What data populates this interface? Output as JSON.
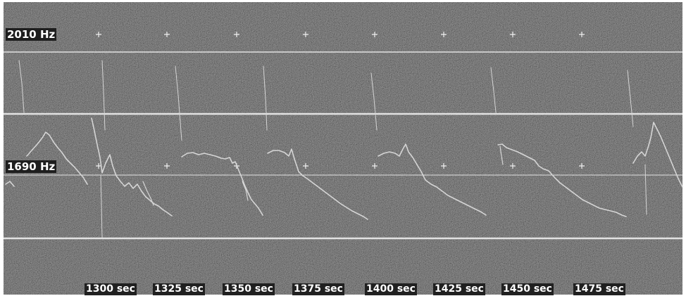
{
  "chart_data": {
    "type": "heatmap",
    "title": "",
    "xlabel": "",
    "ylabel": "",
    "freq_labels": [
      "2010 Hz",
      "1690 Hz"
    ],
    "time_labels": [
      "1300 sec",
      "1325 sec",
      "1350 sec",
      "1375 sec",
      "1400 sec",
      "1425 sec",
      "1450 sec",
      "1475 sec"
    ],
    "grid": "crosshair markers",
    "colors": {
      "background": "#2a2a2a",
      "trace": "#d8d8d8",
      "line": "#e0e0e0"
    }
  }
}
